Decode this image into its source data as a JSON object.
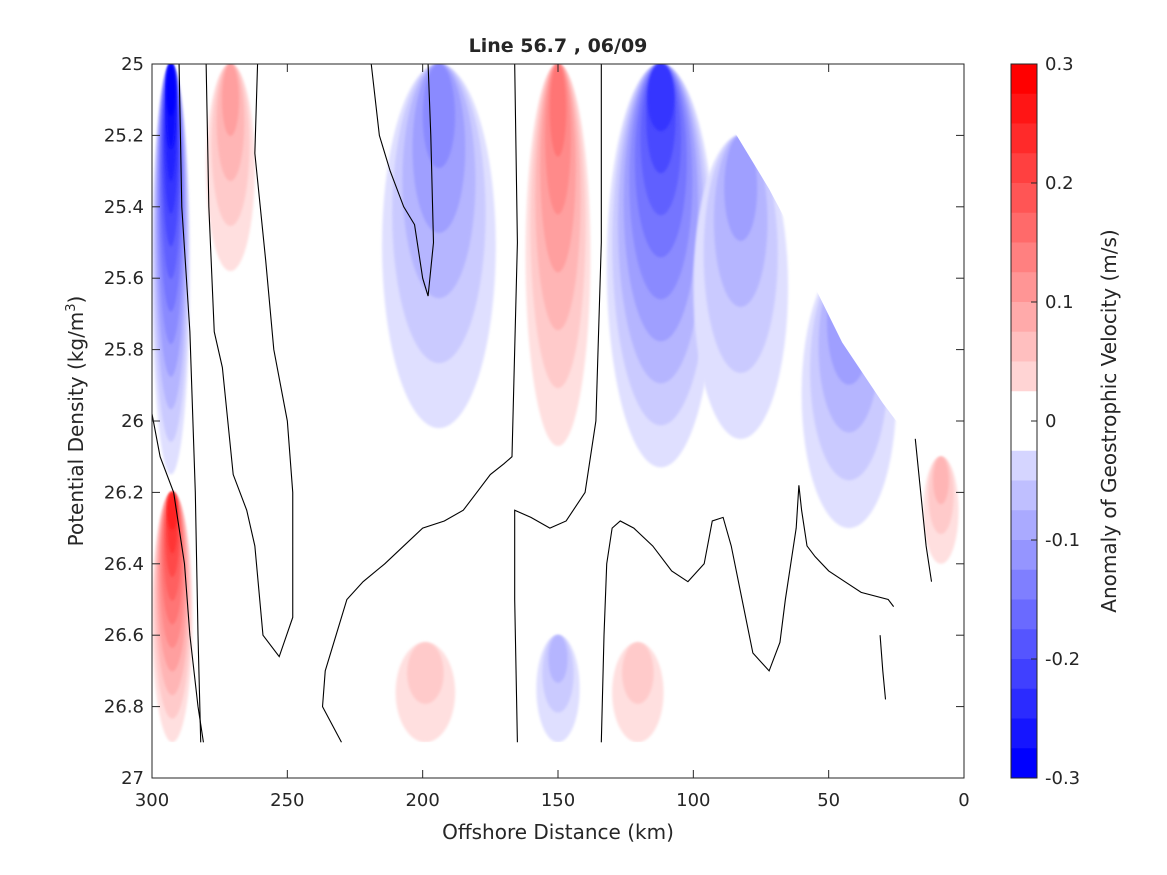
{
  "chart_data": {
    "type": "heatmap",
    "subtype": "filled-contour",
    "title": "Line 56.7 , 06/09",
    "xlabel": "Offshore Distance (km)",
    "ylabel_main": "Potential Density (kg/m",
    "ylabel_sup": "3",
    "ylabel_close": ")",
    "colorbar_label": "Anomaly of Geostrophic Velocity (m/s)",
    "xlim": [
      300,
      0
    ],
    "ylim": [
      25,
      27
    ],
    "x_reversed": true,
    "y_reversed": true,
    "x_ticks": [
      300,
      250,
      200,
      150,
      100,
      50,
      0
    ],
    "x_tick_labels": [
      "300",
      "250",
      "200",
      "150",
      "100",
      "50",
      "0"
    ],
    "y_ticks": [
      25,
      25.2,
      25.4,
      25.6,
      25.8,
      26,
      26.2,
      26.4,
      26.6,
      26.8,
      27
    ],
    "y_tick_labels": [
      "25",
      "25.2",
      "25.4",
      "25.6",
      "25.8",
      "26",
      "26.2",
      "26.4",
      "26.6",
      "26.8",
      "27"
    ],
    "clim": [
      -0.3,
      0.3
    ],
    "colorbar_levels": 24,
    "colorbar_ticks": [
      0.3,
      0.2,
      0.1,
      0,
      -0.1,
      -0.2,
      -0.3
    ],
    "colorbar_tick_labels": [
      "0.3",
      "0.2",
      "0.1",
      "0",
      "-0.1",
      "-0.2",
      "-0.3"
    ],
    "colors": {
      "positive": "#ff0000",
      "negative": "#0000ff",
      "zero": "#ffffff",
      "contour": "#000000"
    },
    "features": [
      {
        "sign": -1,
        "x": [
          300,
          286
        ],
        "y": [
          25.0,
          26.15
        ],
        "peak": -0.3
      },
      {
        "sign": 1,
        "x": [
          280,
          262
        ],
        "y": [
          25.0,
          25.58
        ],
        "peak": 0.09
      },
      {
        "sign": -1,
        "x": [
          215,
          173
        ],
        "y": [
          25.0,
          26.02
        ],
        "peak": -0.13
      },
      {
        "sign": 1,
        "x": [
          162,
          138
        ],
        "y": [
          25.0,
          26.07
        ],
        "peak": 0.14
      },
      {
        "sign": -1,
        "x": [
          132,
          92
        ],
        "y": [
          25.0,
          26.13
        ],
        "peak": -0.22
      },
      {
        "sign": -1,
        "x": [
          100,
          65
        ],
        "y": [
          25.2,
          26.05
        ],
        "peak": -0.1
      },
      {
        "sign": -1,
        "x": [
          60,
          25
        ],
        "y": [
          25.55,
          26.3
        ],
        "peak": -0.13
      },
      {
        "sign": 1,
        "x": [
          15,
          2
        ],
        "y": [
          26.1,
          26.4
        ],
        "peak": 0.07
      },
      {
        "sign": 1,
        "x": [
          300,
          285
        ],
        "y": [
          26.2,
          26.9
        ],
        "peak": 0.25
      },
      {
        "sign": 1,
        "x": [
          210,
          188
        ],
        "y": [
          26.62,
          26.9
        ],
        "peak": 0.05
      },
      {
        "sign": -1,
        "x": [
          158,
          142
        ],
        "y": [
          26.6,
          26.9
        ],
        "peak": -0.07
      },
      {
        "sign": 1,
        "x": [
          130,
          111
        ],
        "y": [
          26.62,
          26.9
        ],
        "peak": 0.06
      }
    ],
    "zero_contours": [
      [
        [
          290,
          25.0
        ],
        [
          289,
          25.4
        ],
        [
          286,
          25.75
        ],
        [
          284,
          26.2
        ],
        [
          283,
          26.6
        ],
        [
          282,
          26.9
        ]
      ],
      [
        [
          280,
          25.0
        ],
        [
          279,
          25.4
        ],
        [
          277,
          25.75
        ],
        [
          274,
          25.85
        ],
        [
          272,
          26.0
        ],
        [
          270,
          26.15
        ],
        [
          265,
          26.25
        ],
        [
          262,
          26.35
        ],
        [
          259,
          26.6
        ],
        [
          253,
          26.66
        ],
        [
          248,
          26.55
        ],
        [
          248,
          26.2
        ],
        [
          250,
          26.0
        ],
        [
          255,
          25.8
        ],
        [
          258,
          25.55
        ],
        [
          262,
          25.25
        ],
        [
          261,
          25.0
        ]
      ],
      [
        [
          219,
          25.0
        ],
        [
          216,
          25.2
        ],
        [
          212,
          25.3
        ],
        [
          207,
          25.4
        ],
        [
          203,
          25.45
        ],
        [
          200,
          25.6
        ],
        [
          198,
          25.65
        ],
        [
          196,
          25.5
        ],
        [
          197,
          25.2
        ],
        [
          198,
          25.0
        ]
      ],
      [
        [
          300,
          25.98
        ],
        [
          297,
          26.1
        ],
        [
          292,
          26.2
        ],
        [
          288,
          26.4
        ],
        [
          286,
          26.6
        ],
        [
          283,
          26.8
        ],
        [
          281,
          26.9
        ]
      ],
      [
        [
          230,
          26.9
        ],
        [
          237,
          26.8
        ],
        [
          236,
          26.7
        ],
        [
          232,
          26.6
        ],
        [
          228,
          26.5
        ],
        [
          222,
          26.45
        ],
        [
          214,
          26.4
        ],
        [
          207,
          26.35
        ],
        [
          200,
          26.3
        ],
        [
          192,
          26.28
        ],
        [
          185,
          26.25
        ],
        [
          180,
          26.2
        ],
        [
          175,
          26.15
        ],
        [
          170,
          26.12
        ],
        [
          167,
          26.1
        ],
        [
          165,
          25.5
        ],
        [
          166,
          25.0
        ]
      ],
      [
        [
          165,
          26.9
        ],
        [
          166,
          26.5
        ],
        [
          166,
          26.25
        ],
        [
          160,
          26.27
        ],
        [
          153,
          26.3
        ],
        [
          147,
          26.28
        ],
        [
          140,
          26.2
        ],
        [
          136,
          26.0
        ],
        [
          134,
          25.5
        ],
        [
          134,
          25.0
        ]
      ],
      [
        [
          134,
          26.9
        ],
        [
          133,
          26.6
        ],
        [
          132,
          26.4
        ],
        [
          130,
          26.3
        ],
        [
          127,
          26.28
        ],
        [
          122,
          26.3
        ],
        [
          115,
          26.35
        ],
        [
          108,
          26.42
        ],
        [
          102,
          26.45
        ],
        [
          96,
          26.4
        ],
        [
          93,
          26.28
        ],
        [
          89,
          26.27
        ],
        [
          86,
          26.35
        ],
        [
          82,
          26.5
        ],
        [
          78,
          26.65
        ],
        [
          72,
          26.7
        ],
        [
          68,
          26.62
        ],
        [
          66,
          26.5
        ],
        [
          64,
          26.4
        ],
        [
          62,
          26.3
        ],
        [
          61,
          26.18
        ],
        [
          60,
          26.25
        ],
        [
          58,
          26.35
        ],
        [
          55,
          26.38
        ],
        [
          50,
          26.42
        ],
        [
          44,
          26.45
        ],
        [
          38,
          26.48
        ],
        [
          28,
          26.5
        ],
        [
          26,
          26.52
        ]
      ],
      [
        [
          18,
          26.05
        ],
        [
          16,
          26.2
        ],
        [
          14,
          26.35
        ],
        [
          12,
          26.45
        ]
      ],
      [
        [
          31,
          26.6
        ],
        [
          30,
          26.7
        ],
        [
          29,
          26.78
        ]
      ]
    ],
    "nan_boundary": [
      [
        300,
        26.9
      ],
      [
        153,
        26.9
      ],
      [
        138,
        26.9
      ],
      [
        121,
        26.9
      ],
      [
        105,
        26.9
      ],
      [
        0,
        26.9
      ],
      [
        0,
        26.05
      ],
      [
        20,
        26.05
      ],
      [
        30,
        25.95
      ],
      [
        45,
        25.78
      ],
      [
        60,
        25.55
      ],
      [
        65,
        25.45
      ],
      [
        72,
        25.35
      ],
      [
        80,
        25.25
      ],
      [
        88,
        25.15
      ],
      [
        95,
        25.08
      ],
      [
        102,
        25.0
      ],
      [
        300,
        25.0
      ]
    ]
  }
}
